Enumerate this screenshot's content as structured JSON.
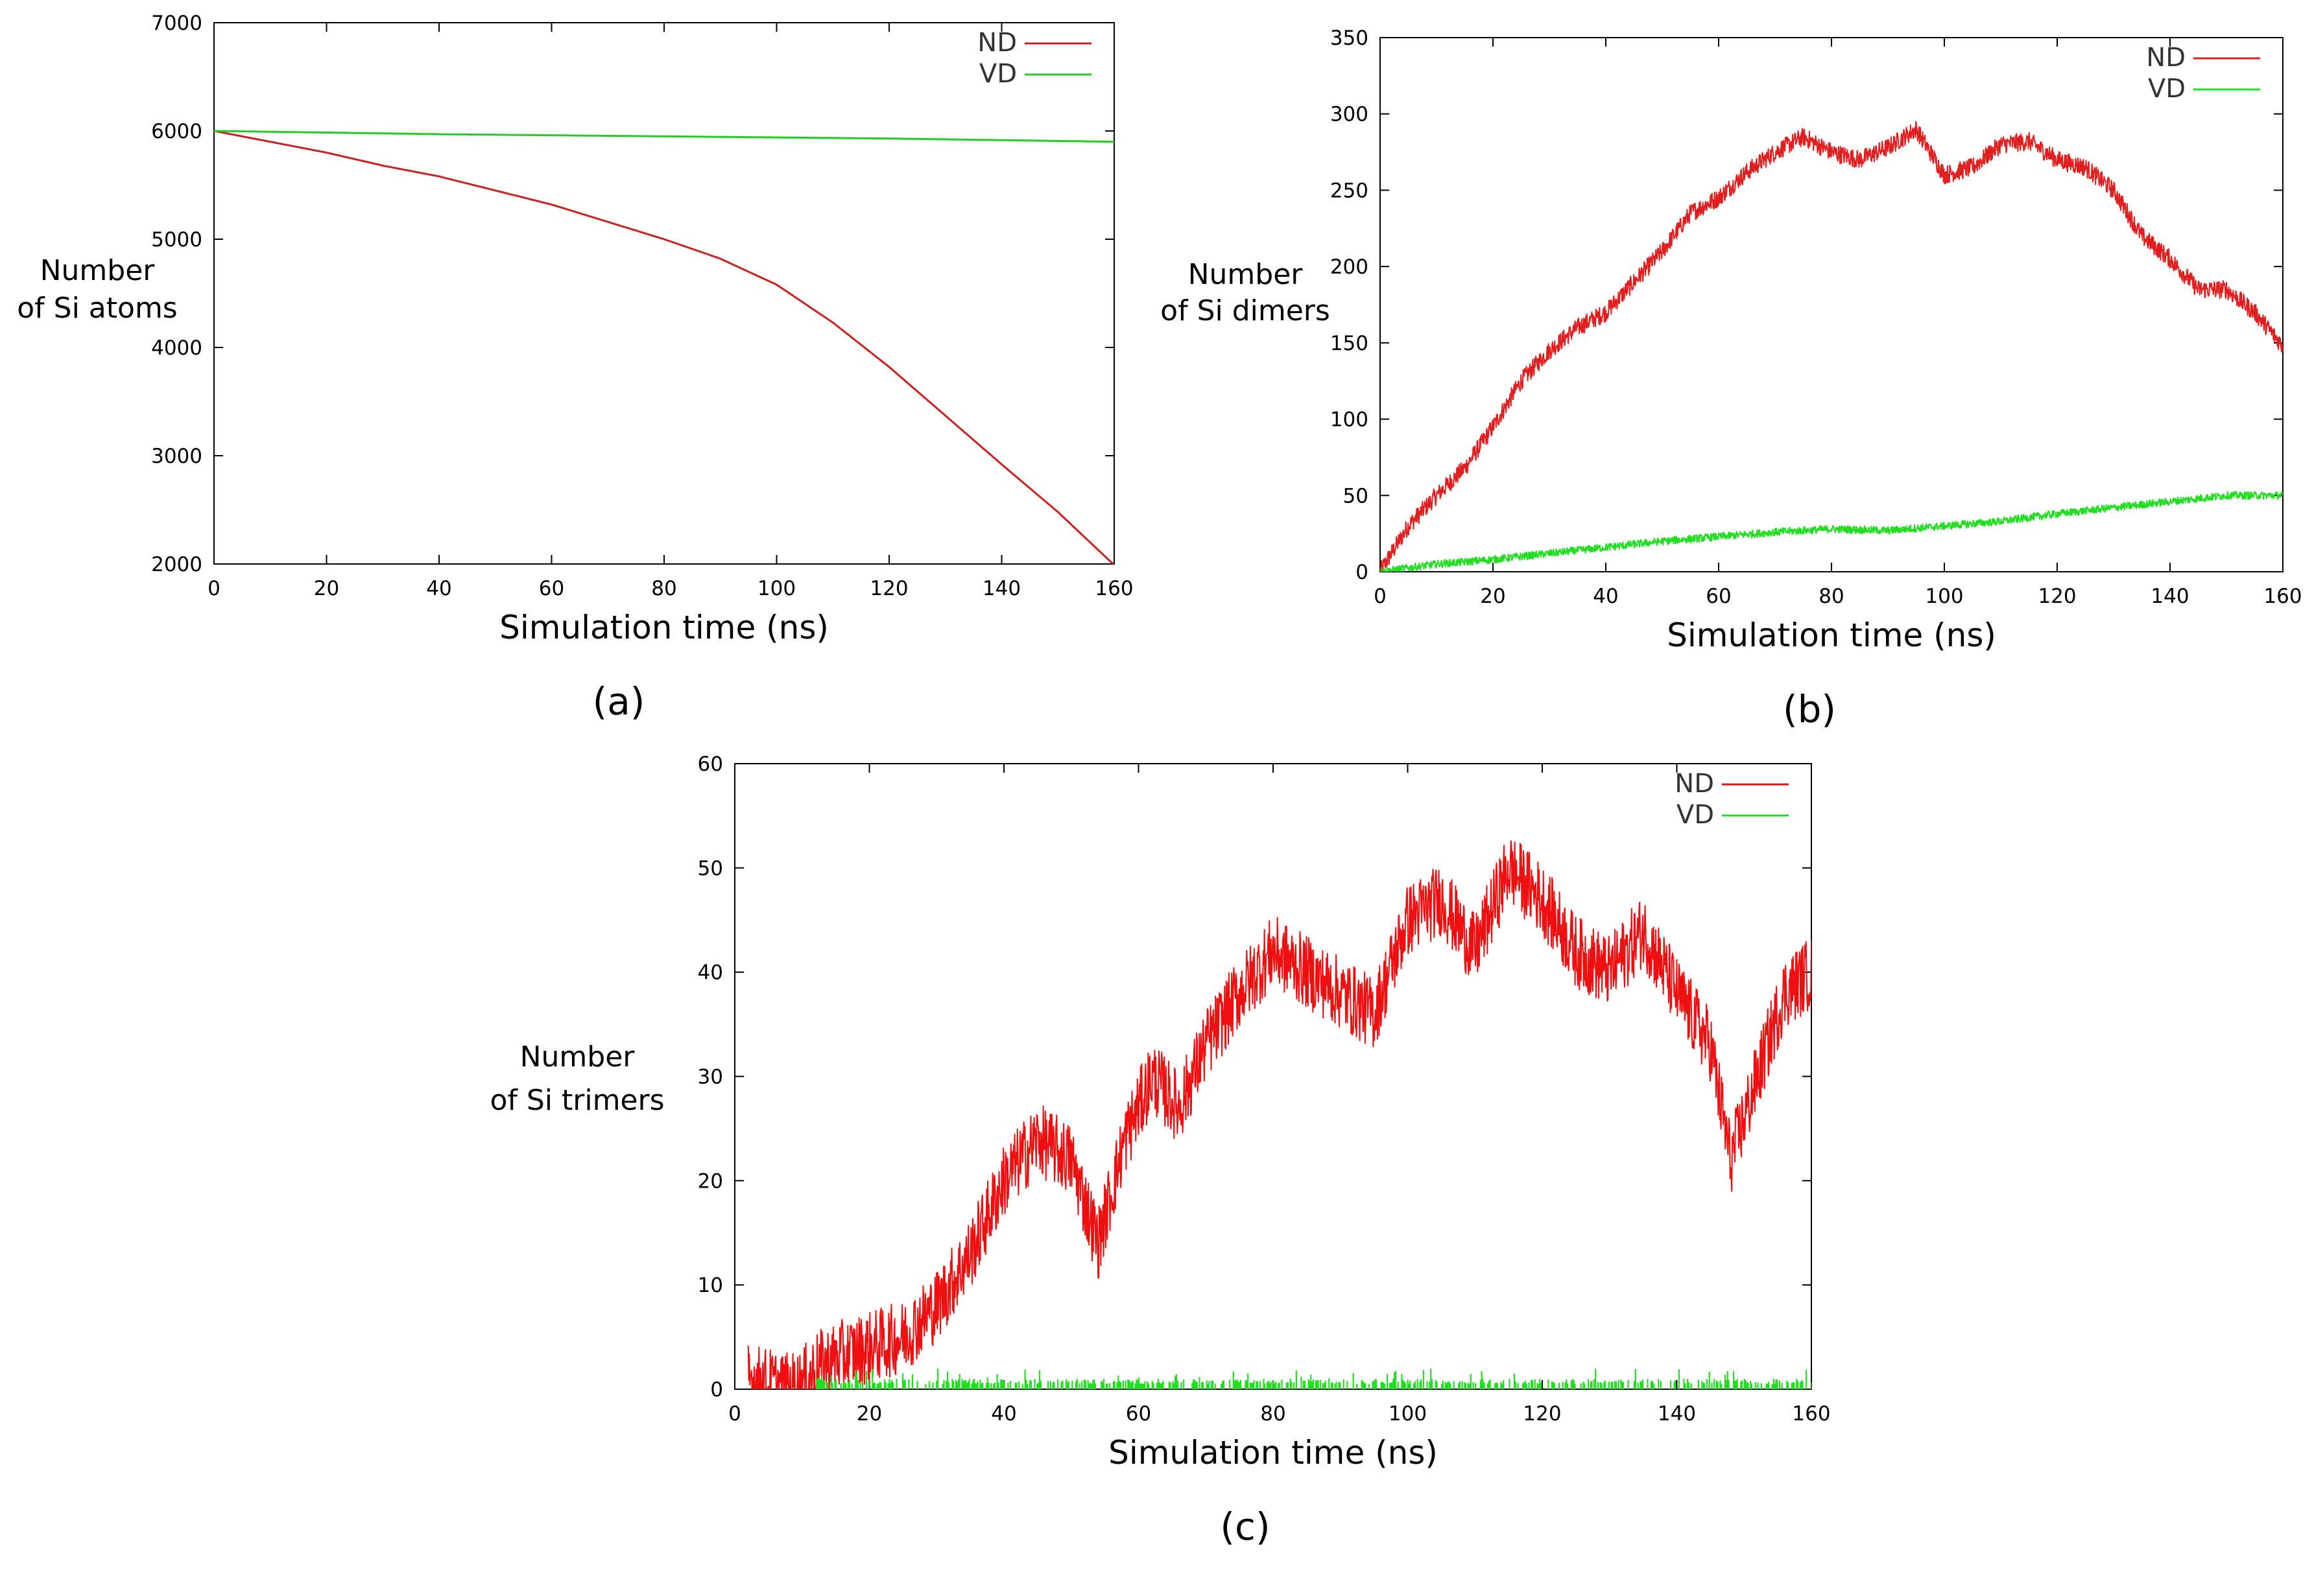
{
  "chart_data": [
    {
      "type": "line",
      "panel_label": "(a)",
      "xlabel": "Simulation time (ns)",
      "ylabel_lines": [
        "Number",
        "of Si atoms"
      ],
      "xlim": [
        0,
        160
      ],
      "ylim": [
        2000,
        7000
      ],
      "xticks": [
        0,
        20,
        40,
        60,
        80,
        100,
        120,
        140,
        160
      ],
      "yticks": [
        2000,
        3000,
        4000,
        5000,
        6000,
        7000
      ],
      "legend_position": "top-right",
      "series": [
        {
          "name": "ND",
          "color": "#cc2020",
          "noise": 0,
          "style": "line",
          "x": [
            0,
            10,
            20,
            30,
            40,
            50,
            60,
            70,
            80,
            90,
            100,
            110,
            120,
            130,
            140,
            150,
            160
          ],
          "y": [
            6000,
            5900,
            5800,
            5680,
            5580,
            5450,
            5320,
            5160,
            5000,
            4820,
            4580,
            4230,
            3820,
            3370,
            2920,
            2480,
            1990
          ]
        },
        {
          "name": "VD",
          "color": "#22cc22",
          "noise": 0,
          "style": "line",
          "x": [
            0,
            40,
            80,
            120,
            160
          ],
          "y": [
            6000,
            5970,
            5950,
            5930,
            5900
          ]
        }
      ]
    },
    {
      "type": "line",
      "panel_label": "(b)",
      "xlabel": "Simulation time (ns)",
      "ylabel_lines": [
        "Number",
        "of Si dimers"
      ],
      "xlim": [
        0,
        160
      ],
      "ylim": [
        0,
        350
      ],
      "xticks": [
        0,
        20,
        40,
        60,
        80,
        100,
        120,
        140,
        160
      ],
      "yticks": [
        0,
        50,
        100,
        150,
        200,
        250,
        300,
        350
      ],
      "legend_position": "top-right",
      "series": [
        {
          "name": "ND",
          "color": "#e02020",
          "noise": 6,
          "style": "line",
          "x": [
            0,
            5,
            10,
            15,
            20,
            25,
            30,
            35,
            40,
            45,
            50,
            55,
            60,
            65,
            70,
            75,
            80,
            85,
            90,
            95,
            100,
            105,
            110,
            115,
            120,
            125,
            130,
            135,
            140,
            145,
            150,
            155,
            160
          ],
          "y": [
            0,
            30,
            50,
            68,
            95,
            125,
            145,
            160,
            170,
            190,
            210,
            235,
            245,
            262,
            275,
            285,
            275,
            270,
            278,
            290,
            260,
            265,
            280,
            282,
            270,
            265,
            250,
            220,
            205,
            185,
            185,
            170,
            148
          ]
        },
        {
          "name": "VD",
          "color": "#22dd22",
          "noise": 2.5,
          "style": "line",
          "x": [
            0,
            10,
            20,
            30,
            40,
            50,
            60,
            70,
            80,
            90,
            100,
            110,
            120,
            130,
            140,
            150,
            160
          ],
          "y": [
            0,
            5,
            8,
            12,
            16,
            20,
            23,
            26,
            28,
            27,
            30,
            33,
            38,
            42,
            46,
            50,
            50
          ]
        }
      ]
    },
    {
      "type": "line",
      "panel_label": "(c)",
      "xlabel": "Simulation time (ns)",
      "ylabel_lines": [
        "Number",
        "of Si trimers"
      ],
      "xlim": [
        0,
        160
      ],
      "ylim": [
        0,
        60
      ],
      "xticks": [
        0,
        20,
        40,
        60,
        80,
        100,
        120,
        140,
        160
      ],
      "yticks": [
        0,
        10,
        20,
        30,
        40,
        50,
        60
      ],
      "legend_position": "top-right",
      "series": [
        {
          "name": "ND",
          "color": "#ee1010",
          "noise": 3.5,
          "style": "line",
          "x": [
            2,
            5,
            8,
            10,
            12,
            15,
            20,
            25,
            30,
            35,
            40,
            45,
            50,
            54,
            58,
            62,
            66,
            70,
            75,
            80,
            85,
            90,
            95,
            100,
            105,
            110,
            115,
            120,
            125,
            130,
            135,
            140,
            145,
            148,
            152,
            156,
            160
          ],
          "y": [
            1,
            0.5,
            0,
            0.5,
            2,
            3,
            4,
            5,
            8,
            13,
            20,
            24,
            22,
            14,
            24,
            30,
            27,
            33,
            38,
            42,
            40,
            38,
            36,
            45,
            47,
            42,
            50,
            47,
            42,
            40,
            44,
            38,
            33,
            22,
            30,
            38,
            40
          ]
        },
        {
          "name": "VD",
          "color": "#22dd22",
          "noise": 0,
          "style": "spikes",
          "x": [
            12,
            160
          ],
          "y": [
            0,
            0
          ],
          "spike_max": 2
        }
      ]
    }
  ]
}
